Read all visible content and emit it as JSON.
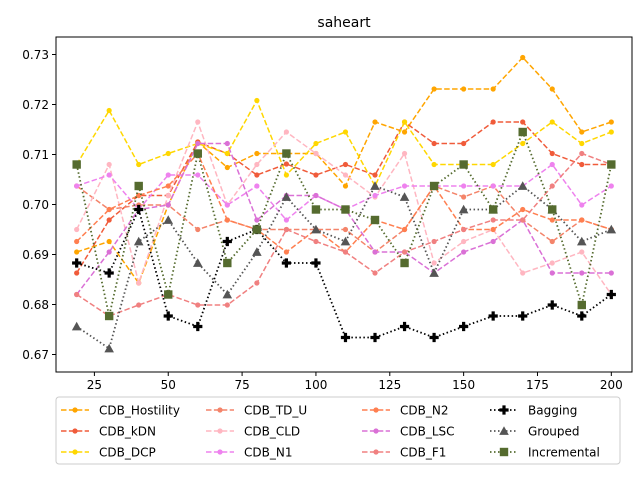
{
  "chart_data": {
    "type": "line",
    "title": "saheart",
    "xlabel": "",
    "ylabel": "",
    "xlim": [
      12,
      207
    ],
    "ylim": [
      0.6665,
      0.7335
    ],
    "x": [
      19,
      30,
      40,
      50,
      60,
      70,
      80,
      90,
      100,
      110,
      120,
      130,
      140,
      150,
      160,
      170,
      180,
      190,
      200
    ],
    "xticks": [
      25,
      50,
      75,
      100,
      125,
      150,
      175,
      200
    ],
    "yticks": [
      0.67,
      0.68,
      0.69,
      0.7,
      0.71,
      0.72,
      0.73
    ],
    "ytick_labels": [
      "0.67",
      "0.68",
      "0.69",
      "0.70",
      "0.71",
      "0.72",
      "0.73"
    ],
    "grid": false,
    "legend": {
      "placement": "bottom",
      "columns": 4
    },
    "series": [
      {
        "name": "CDB_Hostility",
        "color": "#FFA500",
        "marker": "circle",
        "dash": "dashed",
        "values": [
          0.6905,
          0.6926,
          0.6843,
          0.6999,
          0.7125,
          0.7074,
          0.7102,
          0.7102,
          0.7102,
          0.7037,
          0.7165,
          0.7145,
          0.7231,
          0.7231,
          0.7231,
          0.7294,
          0.7231,
          0.7145,
          0.7165
        ]
      },
      {
        "name": "CDB_kDN",
        "color": "#F05B3A",
        "marker": "circle",
        "dash": "dashed",
        "values": [
          0.6863,
          0.6969,
          0.7018,
          0.7018,
          0.7125,
          0.7102,
          0.7059,
          0.7081,
          0.7059,
          0.708,
          0.7059,
          0.7165,
          0.7122,
          0.7122,
          0.7165,
          0.7165,
          0.7102,
          0.708,
          0.708
        ]
      },
      {
        "name": "CDB_DCP",
        "color": "#FFD700",
        "marker": "circle",
        "dash": "dashed",
        "values": [
          0.708,
          0.7188,
          0.708,
          0.7102,
          0.7122,
          0.7102,
          0.7208,
          0.7059,
          0.7122,
          0.7145,
          0.7037,
          0.7165,
          0.708,
          0.708,
          0.708,
          0.7122,
          0.7165,
          0.7122,
          0.7145
        ]
      },
      {
        "name": "CDB_TD_U",
        "color": "#F4846A",
        "marker": "circle",
        "dash": "dashed",
        "values": [
          0.7037,
          0.699,
          0.6999,
          0.6999,
          0.695,
          0.6969,
          0.695,
          0.695,
          0.695,
          0.695,
          0.6905,
          0.695,
          0.7037,
          0.7015,
          0.7037,
          0.6969,
          0.6926,
          0.6969,
          0.695
        ]
      },
      {
        "name": "CDB_CLD",
        "color": "#FFB6C1",
        "marker": "circle",
        "dash": "dashed",
        "values": [
          0.695,
          0.708,
          0.6843,
          0.7018,
          0.7165,
          0.6999,
          0.708,
          0.7145,
          0.7102,
          0.7059,
          0.7015,
          0.7102,
          0.6883,
          0.6926,
          0.695,
          0.6863,
          0.6883,
          0.6905,
          0.682
        ]
      },
      {
        "name": "CDB_N1",
        "color": "#EE82EE",
        "marker": "circle",
        "dash": "dashed",
        "values": [
          0.7037,
          0.7059,
          0.699,
          0.7059,
          0.7059,
          0.6999,
          0.7037,
          0.6969,
          0.7018,
          0.699,
          0.7018,
          0.7037,
          0.7037,
          0.7037,
          0.7037,
          0.7037,
          0.708,
          0.6999,
          0.7037
        ]
      },
      {
        "name": "CDB_N2",
        "color": "#FF7F50",
        "marker": "circle",
        "dash": "dashed",
        "values": [
          0.6926,
          0.699,
          0.7018,
          0.7037,
          0.7102,
          0.6969,
          0.695,
          0.6905,
          0.695,
          0.6905,
          0.6969,
          0.695,
          0.7037,
          0.695,
          0.695,
          0.699,
          0.6969,
          0.6969,
          0.695
        ]
      },
      {
        "name": "CDB_LSC",
        "color": "#DA70D6",
        "marker": "circle",
        "dash": "dashed",
        "values": [
          0.682,
          0.6905,
          0.699,
          0.6999,
          0.7122,
          0.7122,
          0.6969,
          0.7018,
          0.7018,
          0.699,
          0.6905,
          0.6905,
          0.6863,
          0.6905,
          0.6926,
          0.6969,
          0.6863,
          0.6863,
          0.6863
        ]
      },
      {
        "name": "CDB_F1",
        "color": "#F08080",
        "marker": "circle",
        "dash": "dashed",
        "values": [
          0.682,
          0.6777,
          0.6799,
          0.682,
          0.6799,
          0.6799,
          0.6843,
          0.695,
          0.6926,
          0.6905,
          0.6863,
          0.6905,
          0.6926,
          0.695,
          0.6969,
          0.6969,
          0.7037,
          0.7102,
          0.708
        ]
      },
      {
        "name": "Bagging",
        "color": "#000000",
        "marker": "plus",
        "dash": "dotted",
        "values": [
          0.6883,
          0.6863,
          0.699,
          0.6777,
          0.6756,
          0.6926,
          0.695,
          0.6883,
          0.6883,
          0.6734,
          0.6734,
          0.6756,
          0.6734,
          0.6756,
          0.6777,
          0.6777,
          0.6799,
          0.6777,
          0.682
        ]
      },
      {
        "name": "Grouped",
        "color": "#555555",
        "marker": "triangle",
        "dash": "dotted",
        "values": [
          0.6756,
          0.6712,
          0.6926,
          0.6969,
          0.6883,
          0.682,
          0.6905,
          0.7015,
          0.695,
          0.6926,
          0.7037,
          0.7015,
          0.6863,
          0.699,
          0.699,
          0.7037,
          0.699,
          0.6926,
          0.695
        ]
      },
      {
        "name": "Incremental",
        "color": "#556B2F",
        "marker": "square",
        "dash": "dotted",
        "values": [
          0.708,
          0.6777,
          0.7037,
          0.682,
          0.7102,
          0.6883,
          0.695,
          0.7102,
          0.699,
          0.699,
          0.6969,
          0.6883,
          0.7037,
          0.708,
          0.699,
          0.7145,
          0.699,
          0.6799,
          0.708
        ]
      }
    ]
  }
}
